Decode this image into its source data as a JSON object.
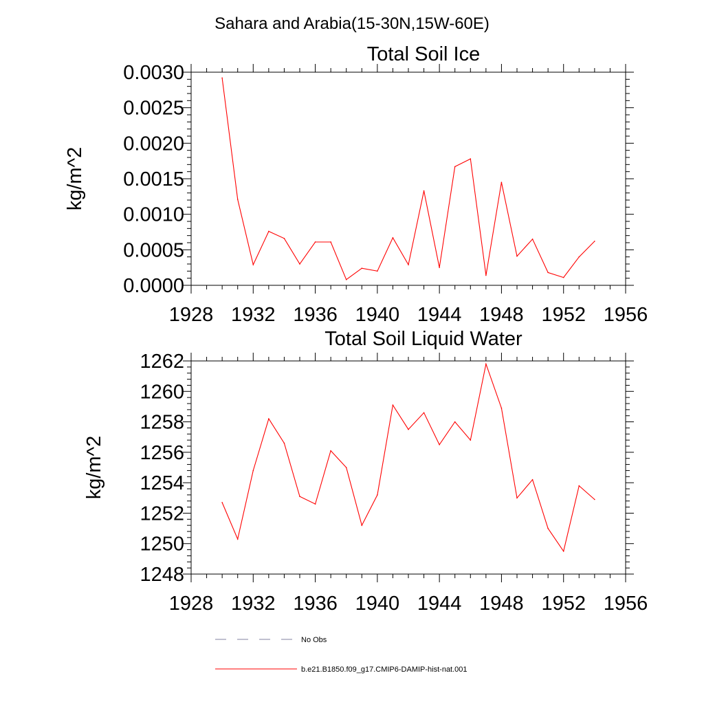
{
  "figure": {
    "suptitle": "Sahara and Arabia(15-30N,15W-60E)",
    "line_color": "#ff0000",
    "obs_color": "#8080a0"
  },
  "legend": {
    "items": [
      {
        "label": "No Obs",
        "style": "dashed"
      },
      {
        "label": "b.e21.B1850.f09_g17.CMIP6-DAMIP-hist-nat.001",
        "style": "solid"
      }
    ]
  },
  "chart_data": [
    {
      "type": "line",
      "title": "Total Soil Ice",
      "xlabel": "",
      "ylabel": "kg/m^2",
      "xlim": [
        1928,
        1956
      ],
      "xticks": [
        "1928",
        "1932",
        "1936",
        "1940",
        "1944",
        "1948",
        "1952",
        "1956"
      ],
      "ylim": [
        0.0,
        0.003
      ],
      "yticks": [
        "0.0000",
        "0.0005",
        "0.0010",
        "0.0015",
        "0.0020",
        "0.0025",
        "0.0030"
      ],
      "grid": false,
      "x": [
        1930,
        1931,
        1932,
        1933,
        1934,
        1935,
        1936,
        1937,
        1938,
        1939,
        1940,
        1941,
        1942,
        1943,
        1944,
        1945,
        1946,
        1947,
        1948,
        1949,
        1950,
        1951,
        1952,
        1953,
        1954
      ],
      "series": [
        {
          "values": [
            0.00292,
            0.00121,
            0.00029,
            0.00076,
            0.00066,
            0.0003,
            0.00061,
            0.00061,
            8e-05,
            0.00024,
            0.0002,
            0.00067,
            0.00029,
            0.00133,
            0.00025,
            0.00167,
            0.00178,
            0.00014,
            0.00145,
            0.00041,
            0.00065,
            0.00018,
            0.00011,
            0.0004,
            0.00062
          ]
        }
      ]
    },
    {
      "type": "line",
      "title": "Total Soil Liquid Water",
      "xlabel": "",
      "ylabel": "kg/m^2",
      "xlim": [
        1928,
        1956
      ],
      "xticks": [
        "1928",
        "1932",
        "1936",
        "1940",
        "1944",
        "1948",
        "1952",
        "1956"
      ],
      "ylim": [
        1248,
        1262
      ],
      "yticks": [
        "1248",
        "1250",
        "1252",
        "1254",
        "1256",
        "1258",
        "1260",
        "1262"
      ],
      "grid": false,
      "x": [
        1930,
        1931,
        1932,
        1933,
        1934,
        1935,
        1936,
        1937,
        1938,
        1939,
        1940,
        1941,
        1942,
        1943,
        1944,
        1945,
        1946,
        1947,
        1948,
        1949,
        1950,
        1951,
        1952,
        1953,
        1954
      ],
      "series": [
        {
          "values": [
            1252.7,
            1250.3,
            1254.8,
            1258.2,
            1256.6,
            1253.1,
            1252.6,
            1256.1,
            1255.0,
            1251.2,
            1253.2,
            1259.1,
            1257.5,
            1258.6,
            1256.5,
            1258.0,
            1256.8,
            1261.8,
            1258.9,
            1253.0,
            1254.2,
            1251.0,
            1249.5,
            1253.8,
            1252.9
          ]
        }
      ]
    }
  ]
}
